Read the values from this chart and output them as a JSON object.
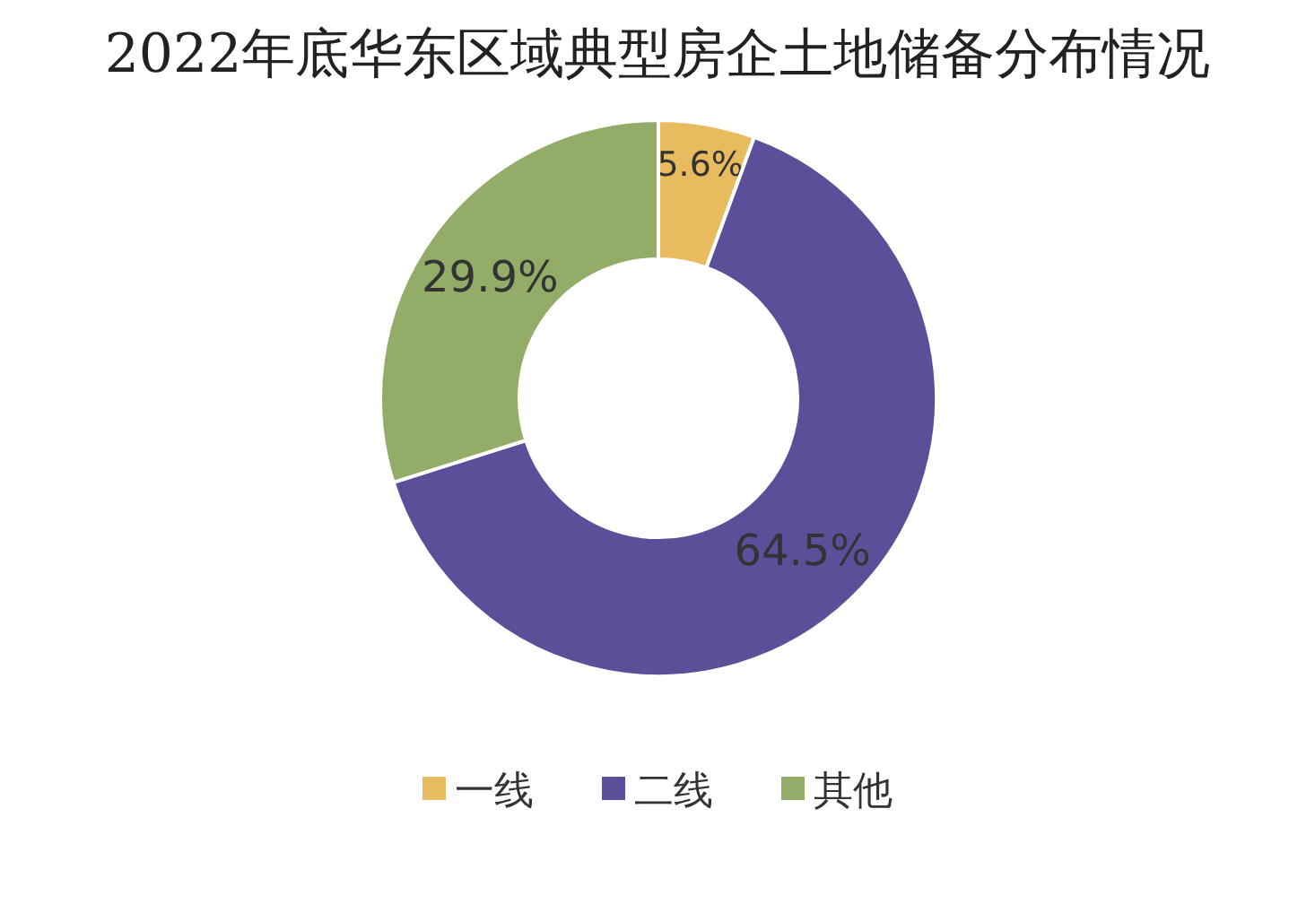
{
  "chart_data": {
    "type": "donut",
    "title": "2022年底华东区域典型房企土地储备分布情况",
    "categories": [
      "一线",
      "二线",
      "其他"
    ],
    "values": [
      5.6,
      64.5,
      29.9
    ],
    "colors": [
      "#e8bb5e",
      "#5b4f9a",
      "#93ad68"
    ],
    "value_labels": [
      "5.6%",
      "64.5%",
      "29.9%"
    ],
    "legend": "bottom"
  }
}
